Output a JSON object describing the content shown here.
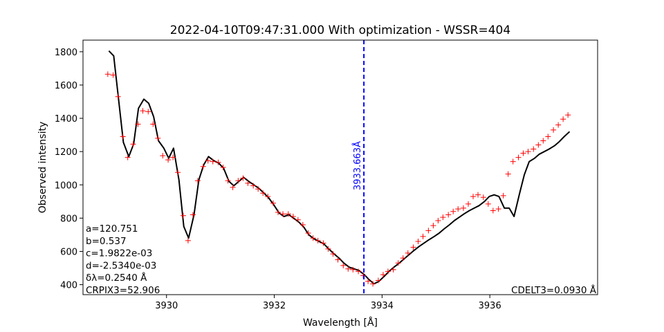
{
  "chart_data": {
    "type": "line",
    "title": "2022-04-10T09:47:31.000 With optimization - WSSR=404",
    "xlabel": "Wavelength [Å]",
    "ylabel": "Observed intensity",
    "xlim": [
      3928.45,
      3938.0
    ],
    "ylim": [
      340,
      1870
    ],
    "xticks": [
      3930,
      3932,
      3934,
      3936
    ],
    "yticks": [
      400,
      600,
      800,
      1000,
      1200,
      1400,
      1600,
      1800
    ],
    "grid": false,
    "series": [
      {
        "style": "line",
        "color": "#000000",
        "x": [
          3928.93,
          3929.02,
          3929.11,
          3929.2,
          3929.3,
          3929.39,
          3929.48,
          3929.58,
          3929.67,
          3929.76,
          3929.85,
          3929.95,
          3930.04,
          3930.13,
          3930.23,
          3930.32,
          3930.41,
          3930.51,
          3930.6,
          3930.69,
          3930.78,
          3930.88,
          3930.97,
          3931.06,
          3931.16,
          3931.25,
          3931.34,
          3931.43,
          3931.53,
          3931.62,
          3931.71,
          3931.81,
          3931.9,
          3931.99,
          3932.09,
          3932.18,
          3932.27,
          3932.36,
          3932.46,
          3932.55,
          3932.64,
          3932.74,
          3932.83,
          3932.92,
          3933.01,
          3933.11,
          3933.2,
          3933.29,
          3933.39,
          3933.48,
          3933.57,
          3933.67,
          3933.76,
          3933.85,
          3933.94,
          3934.04,
          3934.13,
          3934.22,
          3934.32,
          3934.41,
          3934.5,
          3934.59,
          3934.69,
          3934.78,
          3934.87,
          3934.97,
          3935.06,
          3935.15,
          3935.25,
          3935.34,
          3935.43,
          3935.52,
          3935.62,
          3935.71,
          3935.8,
          3935.9,
          3935.99,
          3936.08,
          3936.17,
          3936.27,
          3936.36,
          3936.45,
          3936.55,
          3936.64,
          3936.73,
          3936.83,
          3936.92,
          3937.01,
          3937.1,
          3937.2,
          3937.29,
          3937.38,
          3937.48
        ],
        "y": [
          1805,
          1775,
          1515,
          1255,
          1170,
          1245,
          1460,
          1515,
          1490,
          1410,
          1265,
          1220,
          1160,
          1220,
          1030,
          750,
          680,
          820,
          1030,
          1120,
          1170,
          1145,
          1130,
          1100,
          1020,
          995,
          1020,
          1045,
          1020,
          1000,
          980,
          950,
          920,
          880,
          830,
          810,
          820,
          800,
          775,
          745,
          700,
          675,
          660,
          645,
          615,
          585,
          560,
          530,
          505,
          495,
          485,
          460,
          430,
          405,
          420,
          450,
          480,
          505,
          530,
          555,
          580,
          605,
          630,
          650,
          670,
          690,
          710,
          735,
          760,
          785,
          805,
          825,
          845,
          860,
          875,
          900,
          930,
          940,
          930,
          860,
          860,
          810,
          945,
          1060,
          1140,
          1160,
          1185,
          1200,
          1215,
          1235,
          1260,
          1290,
          1320
        ]
      },
      {
        "style": "markers",
        "marker": "+",
        "color": "#ff0000",
        "x": [
          3928.91,
          3929.01,
          3929.1,
          3929.19,
          3929.28,
          3929.38,
          3929.47,
          3929.56,
          3929.66,
          3929.75,
          3929.84,
          3929.93,
          3930.03,
          3930.12,
          3930.21,
          3930.31,
          3930.4,
          3930.49,
          3930.58,
          3930.68,
          3930.77,
          3930.86,
          3930.96,
          3931.05,
          3931.14,
          3931.23,
          3931.33,
          3931.42,
          3931.51,
          3931.61,
          3931.7,
          3931.79,
          3931.88,
          3931.98,
          3932.07,
          3932.16,
          3932.26,
          3932.35,
          3932.44,
          3932.53,
          3932.63,
          3932.72,
          3932.81,
          3932.91,
          3933.0,
          3933.09,
          3933.18,
          3933.28,
          3933.37,
          3933.46,
          3933.56,
          3933.65,
          3933.74,
          3933.83,
          3933.93,
          3934.02,
          3934.11,
          3934.21,
          3934.3,
          3934.39,
          3934.48,
          3934.58,
          3934.67,
          3934.76,
          3934.86,
          3934.95,
          3935.04,
          3935.13,
          3935.23,
          3935.32,
          3935.41,
          3935.51,
          3935.6,
          3935.69,
          3935.78,
          3935.88,
          3935.97,
          3936.06,
          3936.16,
          3936.25,
          3936.34,
          3936.43,
          3936.53,
          3936.62,
          3936.71,
          3936.81,
          3936.9,
          3936.99,
          3937.08,
          3937.18,
          3937.27,
          3937.36,
          3937.45
        ],
        "y": [
          1665,
          1660,
          1530,
          1290,
          1165,
          1245,
          1365,
          1445,
          1440,
          1365,
          1280,
          1175,
          1150,
          1165,
          1075,
          815,
          665,
          820,
          1025,
          1110,
          1145,
          1140,
          1135,
          1105,
          1025,
          985,
          1025,
          1040,
          1010,
          995,
          975,
          950,
          930,
          890,
          835,
          825,
          825,
          810,
          790,
          760,
          710,
          680,
          665,
          650,
          615,
          585,
          550,
          515,
          495,
          490,
          480,
          455,
          420,
          405,
          425,
          460,
          480,
          490,
          530,
          560,
          590,
          625,
          660,
          690,
          725,
          755,
          785,
          805,
          820,
          840,
          855,
          860,
          885,
          930,
          940,
          925,
          885,
          845,
          855,
          935,
          1065,
          1140,
          1165,
          1190,
          1200,
          1215,
          1240,
          1265,
          1290,
          1330,
          1360,
          1395,
          1420
        ]
      }
    ],
    "vline": {
      "x": 3933.663,
      "label": "3933.663Å",
      "color": "#0000ff"
    },
    "annotations_left": [
      "a=120.751",
      "b=0.537",
      "c=1.9822e-03",
      "d=-2.5340e-03",
      "δλ=0.2540 Å",
      "CRPIX3=52.906"
    ],
    "annotation_right": "CDELT3=0.0930 Å"
  }
}
